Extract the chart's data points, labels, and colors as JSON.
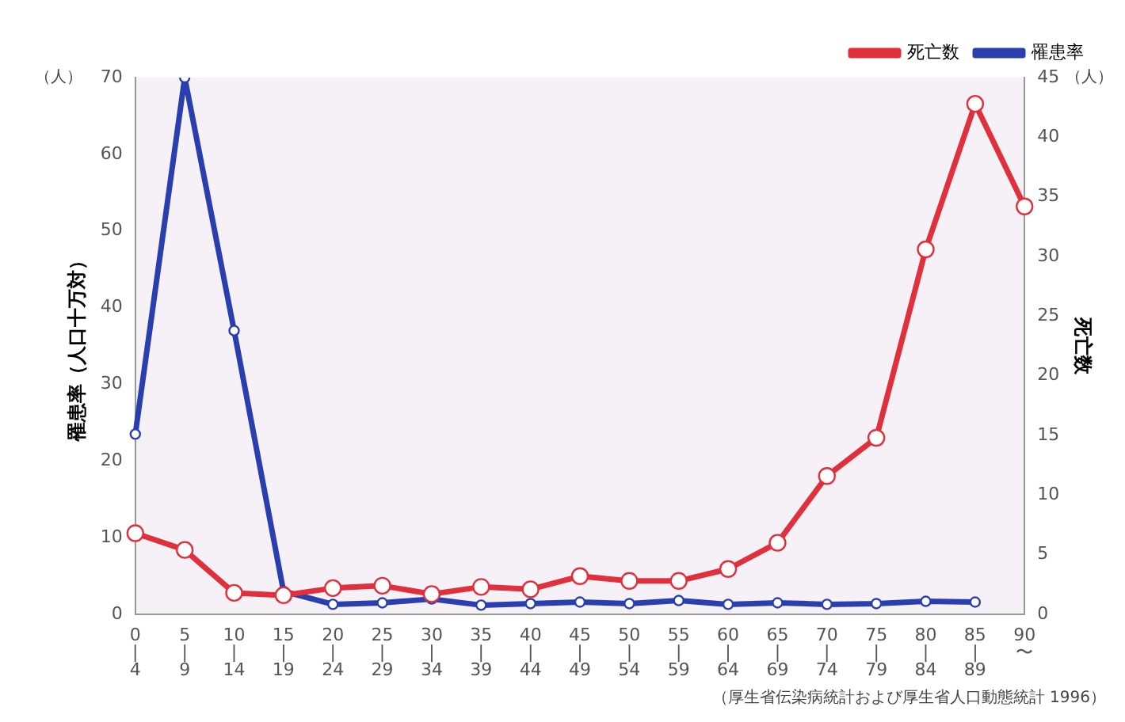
{
  "chart_data": {
    "type": "line",
    "categories": [
      "0\n|\n4",
      "5\n|\n9",
      "10\n|\n14",
      "15\n|\n19",
      "20\n|\n24",
      "25\n|\n29",
      "30\n|\n34",
      "35\n|\n39",
      "40\n|\n44",
      "45\n|\n49",
      "50\n|\n54",
      "55\n|\n59",
      "60\n|\n64",
      "65\n|\n69",
      "70\n|\n74",
      "75\n|\n79",
      "80\n|\n84",
      "85\n|\n89",
      "90\n〜"
    ],
    "series": [
      {
        "name": "罹患率",
        "color": "#2a3fae",
        "values": [
          23.5,
          70,
          37,
          3,
          1.3,
          1.5,
          2,
          1.2,
          1.4,
          1.6,
          1.4,
          1.8,
          1.3,
          1.5,
          1.3,
          1.4,
          1.7,
          1.6,
          null
        ]
      },
      {
        "name": "死亡数",
        "color": "#e0303c",
        "axis": "y2",
        "values": [
          6.8,
          5.4,
          1.8,
          1.6,
          2.2,
          2.4,
          1.7,
          2.3,
          2.1,
          3.2,
          2.8,
          2.8,
          3.8,
          6,
          11.6,
          14.8,
          30.6,
          42.8,
          34.2
        ]
      }
    ],
    "ylabel": "罹患率（人口十万対）",
    "y2label": "死亡数",
    "ylim": [
      0,
      70
    ],
    "yticks": [
      0,
      10,
      20,
      30,
      40,
      50,
      60,
      70
    ],
    "y2lim": [
      0,
      45
    ],
    "y2ticks": [
      0,
      5,
      10,
      15,
      20,
      25,
      30,
      35,
      40,
      45
    ],
    "annotations": [
      "（人）",
      "（人）",
      "（厚生省伝染病統計および厚生省人口動態統計 1996）"
    ],
    "legend": "top right",
    "marker": "circle",
    "line_style": "solid",
    "grid": false
  }
}
